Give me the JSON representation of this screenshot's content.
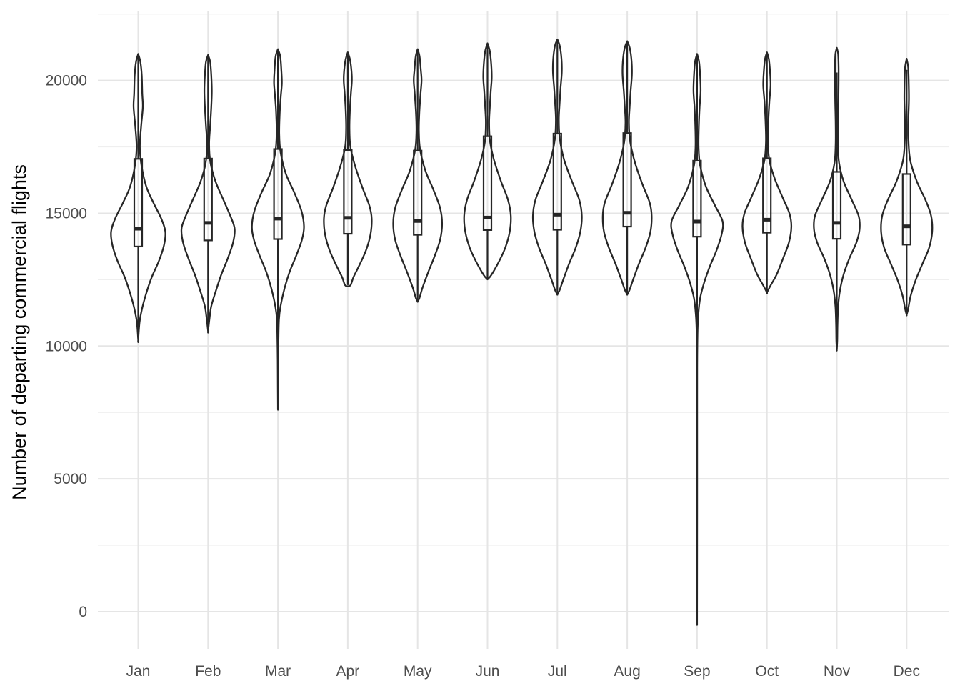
{
  "chart_data": {
    "type": "violin",
    "title": "",
    "xlabel": "",
    "ylabel": "Number of departing commercial flights",
    "ylim": [
      -1400,
      22600
    ],
    "y_ticks": [
      0,
      5000,
      10000,
      15000,
      20000
    ],
    "y_tick_labels": [
      "0",
      "5000",
      "10000",
      "15000",
      "20000"
    ],
    "grid": true,
    "legend": "none",
    "categories": [
      "Jan",
      "Feb",
      "Mar",
      "Apr",
      "May",
      "Jun",
      "Jul",
      "Aug",
      "Sep",
      "Oct",
      "Nov",
      "Dec"
    ],
    "boxes": [
      {
        "month": "Jan",
        "min": 10300,
        "q1": 13750,
        "median": 14420,
        "q3": 17050,
        "max": 21000
      },
      {
        "month": "Feb",
        "min": 10600,
        "q1": 13980,
        "median": 14640,
        "q3": 17060,
        "max": 20950
      },
      {
        "month": "Mar",
        "min": 7700,
        "q1": 14030,
        "median": 14800,
        "q3": 17420,
        "max": 21150
      },
      {
        "month": "Apr",
        "min": 12300,
        "q1": 14230,
        "median": 14830,
        "q3": 17380,
        "max": 21050
      },
      {
        "month": "May",
        "min": 11700,
        "q1": 14190,
        "median": 14710,
        "q3": 17360,
        "max": 21150
      },
      {
        "month": "Jun",
        "min": 12560,
        "q1": 14370,
        "median": 14840,
        "q3": 17900,
        "max": 21400
      },
      {
        "month": "Jul",
        "min": 11980,
        "q1": 14380,
        "median": 14950,
        "q3": 18000,
        "max": 21550
      },
      {
        "month": "Aug",
        "min": 11960,
        "q1": 14500,
        "median": 15020,
        "q3": 18020,
        "max": 21450
      },
      {
        "month": "Sep",
        "min": 0,
        "q1": 14120,
        "median": 14690,
        "q3": 16980,
        "max": 21000
      },
      {
        "month": "Oct",
        "min": 12050,
        "q1": 14270,
        "median": 14760,
        "q3": 17070,
        "max": 21050
      },
      {
        "month": "Nov",
        "min": 9900,
        "q1": 14040,
        "median": 14640,
        "q3": 16560,
        "max": 20300
      },
      {
        "month": "Dec",
        "min": 11200,
        "q1": 13820,
        "median": 14510,
        "q3": 16480,
        "max": 20400
      }
    ],
    "violins": [
      {
        "month": "Jan",
        "max_width": 1.0,
        "top": 21000,
        "bottom": 10230,
        "profile": [
          [
            21000,
            0.0
          ],
          [
            20700,
            0.08
          ],
          [
            20200,
            0.13
          ],
          [
            19500,
            0.15
          ],
          [
            19000,
            0.17
          ],
          [
            18300,
            0.11
          ],
          [
            17500,
            0.06
          ],
          [
            16800,
            0.12
          ],
          [
            16000,
            0.3
          ],
          [
            15400,
            0.56
          ],
          [
            14800,
            0.85
          ],
          [
            14300,
            1.0
          ],
          [
            13800,
            0.95
          ],
          [
            13200,
            0.76
          ],
          [
            12600,
            0.5
          ],
          [
            12000,
            0.3
          ],
          [
            11400,
            0.14
          ],
          [
            10900,
            0.05
          ],
          [
            10230,
            0.0
          ]
        ]
      },
      {
        "month": "Feb",
        "max_width": 0.98,
        "top": 20960,
        "bottom": 10560,
        "profile": [
          [
            20960,
            0.0
          ],
          [
            20700,
            0.08
          ],
          [
            20200,
            0.12
          ],
          [
            19600,
            0.14
          ],
          [
            19000,
            0.12
          ],
          [
            18300,
            0.08
          ],
          [
            17600,
            0.04
          ],
          [
            16900,
            0.09
          ],
          [
            16200,
            0.28
          ],
          [
            15500,
            0.58
          ],
          [
            14800,
            0.88
          ],
          [
            14400,
            1.0
          ],
          [
            13900,
            0.94
          ],
          [
            13300,
            0.74
          ],
          [
            12700,
            0.5
          ],
          [
            12100,
            0.3
          ],
          [
            11500,
            0.12
          ],
          [
            11000,
            0.05
          ],
          [
            10560,
            0.0
          ]
        ]
      },
      {
        "month": "Mar",
        "max_width": 0.96,
        "top": 21180,
        "bottom": 7700,
        "profile": [
          [
            21180,
            0.0
          ],
          [
            20900,
            0.09
          ],
          [
            20400,
            0.13
          ],
          [
            19900,
            0.15
          ],
          [
            19400,
            0.11
          ],
          [
            18800,
            0.07
          ],
          [
            18000,
            0.05
          ],
          [
            17300,
            0.1
          ],
          [
            16500,
            0.3
          ],
          [
            15800,
            0.62
          ],
          [
            15100,
            0.9
          ],
          [
            14500,
            1.0
          ],
          [
            14000,
            0.92
          ],
          [
            13400,
            0.7
          ],
          [
            12800,
            0.45
          ],
          [
            12200,
            0.26
          ],
          [
            11500,
            0.1
          ],
          [
            11000,
            0.04
          ],
          [
            10200,
            0.02
          ],
          [
            9500,
            0.01
          ],
          [
            8500,
            0.005
          ],
          [
            7700,
            0.0
          ]
        ]
      },
      {
        "month": "Apr",
        "max_width": 0.88,
        "top": 21060,
        "bottom": 12250,
        "profile": [
          [
            21060,
            0.0
          ],
          [
            20800,
            0.09
          ],
          [
            20400,
            0.15
          ],
          [
            20000,
            0.17
          ],
          [
            19500,
            0.13
          ],
          [
            18900,
            0.09
          ],
          [
            18200,
            0.07
          ],
          [
            17500,
            0.11
          ],
          [
            16800,
            0.3
          ],
          [
            16000,
            0.6
          ],
          [
            15300,
            0.9
          ],
          [
            14800,
            1.0
          ],
          [
            14200,
            0.95
          ],
          [
            13600,
            0.76
          ],
          [
            13000,
            0.46
          ],
          [
            12600,
            0.24
          ],
          [
            12300,
            0.12
          ],
          [
            12250,
            0.0
          ]
        ]
      },
      {
        "month": "May",
        "max_width": 0.9,
        "top": 21180,
        "bottom": 11680,
        "profile": [
          [
            21180,
            0.0
          ],
          [
            20900,
            0.08
          ],
          [
            20400,
            0.13
          ],
          [
            20000,
            0.16
          ],
          [
            19500,
            0.12
          ],
          [
            18800,
            0.07
          ],
          [
            18100,
            0.05
          ],
          [
            17400,
            0.1
          ],
          [
            16600,
            0.32
          ],
          [
            15900,
            0.64
          ],
          [
            15200,
            0.92
          ],
          [
            14600,
            1.0
          ],
          [
            14000,
            0.92
          ],
          [
            13400,
            0.7
          ],
          [
            12800,
            0.44
          ],
          [
            12200,
            0.2
          ],
          [
            11800,
            0.07
          ],
          [
            11680,
            0.0
          ]
        ]
      },
      {
        "month": "Jun",
        "max_width": 0.86,
        "top": 21400,
        "bottom": 12520,
        "profile": [
          [
            21400,
            0.0
          ],
          [
            21100,
            0.1
          ],
          [
            20600,
            0.16
          ],
          [
            20100,
            0.18
          ],
          [
            19600,
            0.14
          ],
          [
            19000,
            0.1
          ],
          [
            18400,
            0.07
          ],
          [
            17700,
            0.11
          ],
          [
            17000,
            0.28
          ],
          [
            16200,
            0.58
          ],
          [
            15500,
            0.88
          ],
          [
            14900,
            1.0
          ],
          [
            14300,
            0.95
          ],
          [
            13700,
            0.76
          ],
          [
            13200,
            0.5
          ],
          [
            12800,
            0.25
          ],
          [
            12600,
            0.1
          ],
          [
            12520,
            0.0
          ]
        ]
      },
      {
        "month": "Jul",
        "max_width": 0.9,
        "top": 21550,
        "bottom": 11950,
        "profile": [
          [
            21550,
            0.0
          ],
          [
            21300,
            0.1
          ],
          [
            20800,
            0.17
          ],
          [
            20300,
            0.18
          ],
          [
            19700,
            0.13
          ],
          [
            19100,
            0.09
          ],
          [
            18500,
            0.06
          ],
          [
            17800,
            0.1
          ],
          [
            17000,
            0.28
          ],
          [
            16200,
            0.6
          ],
          [
            15500,
            0.9
          ],
          [
            14900,
            1.0
          ],
          [
            14300,
            0.94
          ],
          [
            13700,
            0.75
          ],
          [
            13100,
            0.48
          ],
          [
            12500,
            0.24
          ],
          [
            12100,
            0.09
          ],
          [
            11950,
            0.0
          ]
        ]
      },
      {
        "month": "Aug",
        "max_width": 0.9,
        "top": 21480,
        "bottom": 11950,
        "profile": [
          [
            21480,
            0.0
          ],
          [
            21200,
            0.11
          ],
          [
            20700,
            0.18
          ],
          [
            20200,
            0.19
          ],
          [
            19600,
            0.14
          ],
          [
            19000,
            0.1
          ],
          [
            18400,
            0.07
          ],
          [
            17700,
            0.12
          ],
          [
            16900,
            0.32
          ],
          [
            16100,
            0.62
          ],
          [
            15400,
            0.92
          ],
          [
            14900,
            1.0
          ],
          [
            14300,
            0.95
          ],
          [
            13700,
            0.75
          ],
          [
            13100,
            0.48
          ],
          [
            12500,
            0.24
          ],
          [
            12100,
            0.09
          ],
          [
            11950,
            0.0
          ]
        ]
      },
      {
        "month": "Sep",
        "max_width": 0.94,
        "top": 21000,
        "bottom": 0,
        "profile": [
          [
            21000,
            0.0
          ],
          [
            20700,
            0.08
          ],
          [
            20200,
            0.12
          ],
          [
            19600,
            0.14
          ],
          [
            19000,
            0.1
          ],
          [
            18300,
            0.07
          ],
          [
            17500,
            0.06
          ],
          [
            16800,
            0.12
          ],
          [
            16000,
            0.35
          ],
          [
            15300,
            0.7
          ],
          [
            14700,
            1.0
          ],
          [
            14200,
            0.96
          ],
          [
            13600,
            0.76
          ],
          [
            13000,
            0.5
          ],
          [
            12400,
            0.28
          ],
          [
            11800,
            0.12
          ],
          [
            11200,
            0.05
          ],
          [
            10600,
            0.02
          ],
          [
            9500,
            0.006
          ],
          [
            8000,
            0.004
          ],
          [
            4000,
            0.004
          ],
          [
            0,
            0.0
          ]
        ]
      },
      {
        "month": "Oct",
        "max_width": 0.9,
        "top": 21060,
        "bottom": 12020,
        "profile": [
          [
            21060,
            0.0
          ],
          [
            20800,
            0.08
          ],
          [
            20300,
            0.13
          ],
          [
            19800,
            0.15
          ],
          [
            19200,
            0.1
          ],
          [
            18500,
            0.06
          ],
          [
            17700,
            0.04
          ],
          [
            17000,
            0.1
          ],
          [
            16300,
            0.32
          ],
          [
            15600,
            0.64
          ],
          [
            15000,
            0.92
          ],
          [
            14500,
            1.0
          ],
          [
            13900,
            0.9
          ],
          [
            13300,
            0.66
          ],
          [
            12700,
            0.4
          ],
          [
            12300,
            0.16
          ],
          [
            12020,
            0.0
          ]
        ]
      },
      {
        "month": "Nov",
        "max_width": 0.84,
        "top": 21230,
        "bottom": 9870,
        "profile": [
          [
            21230,
            0.0
          ],
          [
            21000,
            0.06
          ],
          [
            20500,
            0.08
          ],
          [
            19900,
            0.08
          ],
          [
            19200,
            0.07
          ],
          [
            18400,
            0.05
          ],
          [
            17600,
            0.05
          ],
          [
            16900,
            0.1
          ],
          [
            16200,
            0.3
          ],
          [
            15500,
            0.66
          ],
          [
            14900,
            0.96
          ],
          [
            14400,
            1.0
          ],
          [
            13900,
            0.86
          ],
          [
            13300,
            0.55
          ],
          [
            12700,
            0.3
          ],
          [
            12100,
            0.14
          ],
          [
            11500,
            0.06
          ],
          [
            10800,
            0.03
          ],
          [
            10200,
            0.02
          ],
          [
            9870,
            0.0
          ]
        ]
      },
      {
        "month": "Dec",
        "max_width": 0.94,
        "top": 20820,
        "bottom": 11180,
        "profile": [
          [
            20820,
            0.0
          ],
          [
            20500,
            0.06
          ],
          [
            20000,
            0.08
          ],
          [
            19300,
            0.09
          ],
          [
            18600,
            0.07
          ],
          [
            17800,
            0.07
          ],
          [
            17000,
            0.14
          ],
          [
            16200,
            0.4
          ],
          [
            15500,
            0.74
          ],
          [
            14900,
            0.96
          ],
          [
            14300,
            1.0
          ],
          [
            13700,
            0.88
          ],
          [
            13100,
            0.62
          ],
          [
            12500,
            0.36
          ],
          [
            11900,
            0.16
          ],
          [
            11400,
            0.06
          ],
          [
            11180,
            0.0
          ]
        ]
      }
    ]
  }
}
